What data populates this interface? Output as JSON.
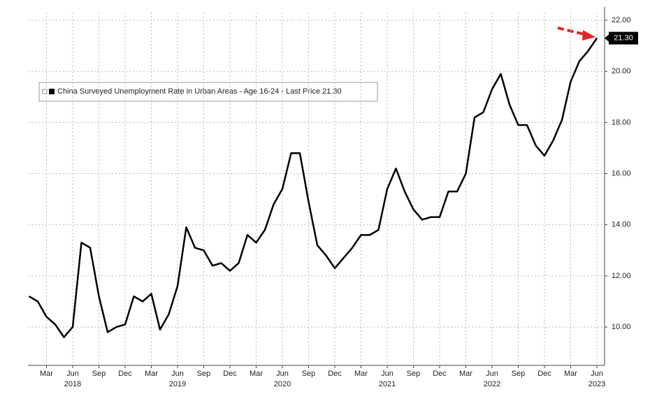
{
  "chart_data": {
    "type": "line",
    "legend": "China Surveyed Unemployment Rate in Urban Areas - Age 16-24 - Last Price 21.30",
    "x": [
      "2018-01",
      "2018-02",
      "2018-03",
      "2018-04",
      "2018-05",
      "2018-06",
      "2018-07",
      "2018-08",
      "2018-09",
      "2018-10",
      "2018-11",
      "2018-12",
      "2019-01",
      "2019-02",
      "2019-03",
      "2019-04",
      "2019-05",
      "2019-06",
      "2019-07",
      "2019-08",
      "2019-09",
      "2019-10",
      "2019-11",
      "2019-12",
      "2020-01",
      "2020-02",
      "2020-03",
      "2020-04",
      "2020-05",
      "2020-06",
      "2020-07",
      "2020-08",
      "2020-09",
      "2020-10",
      "2020-11",
      "2020-12",
      "2021-01",
      "2021-02",
      "2021-03",
      "2021-04",
      "2021-05",
      "2021-06",
      "2021-07",
      "2021-08",
      "2021-09",
      "2021-10",
      "2021-11",
      "2021-12",
      "2022-01",
      "2022-02",
      "2022-03",
      "2022-04",
      "2022-05",
      "2022-06",
      "2022-07",
      "2022-08",
      "2022-09",
      "2022-10",
      "2022-11",
      "2022-12",
      "2023-01",
      "2023-02",
      "2023-03",
      "2023-04",
      "2023-05",
      "2023-06"
    ],
    "series": [
      {
        "name": "China Surveyed Unemployment Rate in Urban Areas - Age 16-24",
        "color": "#000000",
        "values": [
          11.2,
          11.0,
          10.4,
          10.1,
          9.6,
          10.0,
          13.3,
          13.1,
          11.2,
          9.8,
          10.0,
          10.1,
          11.2,
          11.0,
          11.3,
          9.9,
          10.5,
          11.6,
          13.9,
          13.1,
          13.0,
          12.4,
          12.5,
          12.2,
          12.5,
          13.6,
          13.3,
          13.8,
          14.8,
          15.4,
          16.8,
          16.8,
          14.9,
          13.2,
          12.8,
          12.3,
          12.7,
          13.1,
          13.6,
          13.6,
          13.8,
          15.4,
          16.2,
          15.3,
          14.6,
          14.2,
          14.3,
          14.3,
          15.3,
          15.3,
          16.0,
          18.2,
          18.4,
          19.3,
          19.9,
          18.7,
          17.9,
          17.9,
          17.1,
          16.7,
          17.3,
          18.1,
          19.6,
          20.4,
          20.8,
          21.3
        ]
      }
    ],
    "last_price": {
      "value": 21.3,
      "label": "21.30"
    },
    "ylim": [
      8.5,
      22.3
    ],
    "yticks": [
      {
        "value": 10,
        "label": "10.00"
      },
      {
        "value": 12,
        "label": "12.00"
      },
      {
        "value": 14,
        "label": "14.00"
      },
      {
        "value": 16,
        "label": "16.00"
      },
      {
        "value": 18,
        "label": "18.00"
      },
      {
        "value": 20,
        "label": "20.00"
      },
      {
        "value": 22,
        "label": "22.00"
      }
    ],
    "xticks": [
      {
        "value": "2018-03",
        "label": "Mar"
      },
      {
        "value": "2018-06",
        "label": "Jun"
      },
      {
        "value": "2018-09",
        "label": "Sep"
      },
      {
        "value": "2018-12",
        "label": "Dec"
      },
      {
        "value": "2019-03",
        "label": "Mar"
      },
      {
        "value": "2019-06",
        "label": "Jun"
      },
      {
        "value": "2019-09",
        "label": "Sep"
      },
      {
        "value": "2019-12",
        "label": "Dec"
      },
      {
        "value": "2020-03",
        "label": "Mar"
      },
      {
        "value": "2020-06",
        "label": "Jun"
      },
      {
        "value": "2020-09",
        "label": "Sep"
      },
      {
        "value": "2020-12",
        "label": "Dec"
      },
      {
        "value": "2021-03",
        "label": "Mar"
      },
      {
        "value": "2021-06",
        "label": "Jun"
      },
      {
        "value": "2021-09",
        "label": "Sep"
      },
      {
        "value": "2021-12",
        "label": "Dec"
      },
      {
        "value": "2022-03",
        "label": "Mar"
      },
      {
        "value": "2022-06",
        "label": "Jun"
      },
      {
        "value": "2022-09",
        "label": "Sep"
      },
      {
        "value": "2022-12",
        "label": "Dec"
      },
      {
        "value": "2023-03",
        "label": "Mar"
      },
      {
        "value": "2023-06",
        "label": "Jun"
      }
    ],
    "year_ticks": [
      {
        "value": "2018-06",
        "label": "2018"
      },
      {
        "value": "2019-06",
        "label": "2019"
      },
      {
        "value": "2020-06",
        "label": "2020"
      },
      {
        "value": "2021-06",
        "label": "2021"
      },
      {
        "value": "2022-06",
        "label": "2022"
      },
      {
        "value": "2023-06",
        "label": "2023"
      }
    ],
    "grid": true
  }
}
